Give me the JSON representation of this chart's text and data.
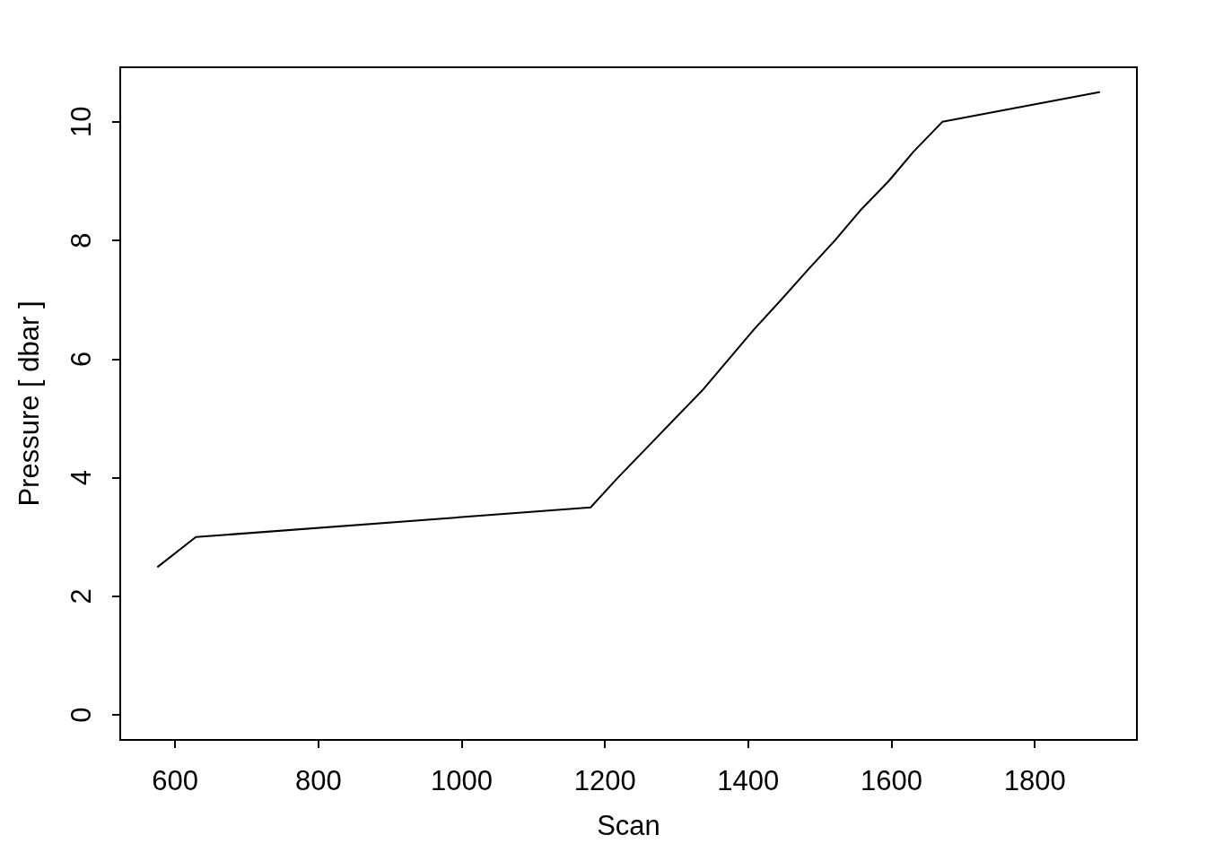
{
  "chart_data": {
    "type": "line",
    "xlabel": "Scan",
    "ylabel": "Pressure [ dbar ]",
    "x": [
      576,
      629,
      1180,
      1218,
      1258,
      1298,
      1338,
      1373,
      1408,
      1446,
      1483,
      1521,
      1556,
      1596,
      1631,
      1671,
      1890
    ],
    "values": [
      2.5,
      3,
      3.5,
      4,
      4.5,
      5,
      5.5,
      6,
      6.5,
      7,
      7.5,
      8,
      8.5,
      9,
      9.5,
      10,
      10.5
    ],
    "color": "#000000",
    "xlim": [
      523.4,
      1942.6
    ],
    "ylim": [
      -0.42,
      10.92
    ],
    "xticks": [
      600,
      800,
      1000,
      1200,
      1400,
      1600,
      1800
    ],
    "yticks": [
      0,
      2,
      4,
      6,
      8,
      10
    ],
    "marker": "none",
    "line_style": "solid"
  }
}
